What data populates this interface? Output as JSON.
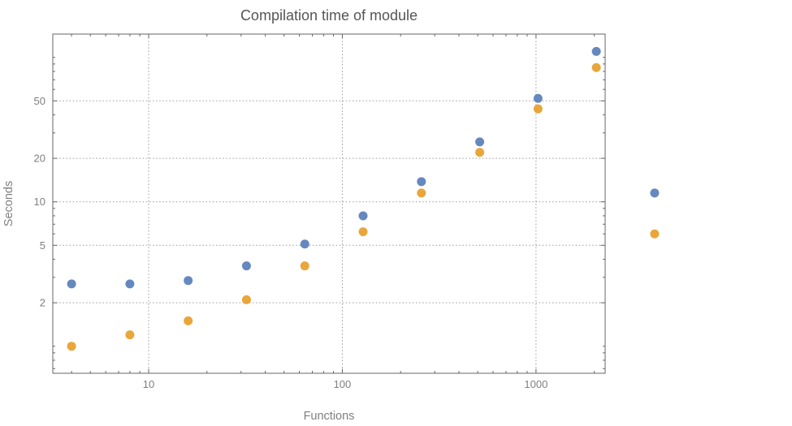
{
  "chart_data": {
    "type": "scatter",
    "title": "Compilation time of module",
    "xlabel": "Functions",
    "ylabel": "Seconds",
    "xscale": "log",
    "yscale": "log",
    "xlim": [
      3.2,
      2275
    ],
    "ylim": [
      0.65,
      145
    ],
    "xticks": [
      10,
      100,
      1000
    ],
    "yticks": [
      2,
      5,
      10,
      20,
      50
    ],
    "xminorticks": [
      4,
      5,
      6,
      7,
      8,
      9,
      20,
      30,
      40,
      50,
      60,
      70,
      80,
      90,
      200,
      300,
      400,
      500,
      600,
      700,
      800,
      900,
      2000
    ],
    "yminorticks": [
      0.7,
      0.8,
      0.9,
      1,
      3,
      4,
      6,
      7,
      8,
      9,
      30,
      40,
      60,
      70,
      80,
      90,
      100
    ],
    "grid": true,
    "legend": "none",
    "x": [
      4,
      8,
      16,
      32,
      64,
      128,
      256,
      512,
      1024,
      2048,
      4096
    ],
    "series": [
      {
        "name": "blue",
        "color": "#6588bf",
        "values": [
          2.7,
          2.7,
          2.85,
          3.6,
          5.1,
          8.0,
          13.8,
          26,
          52,
          110,
          11.5
        ]
      },
      {
        "name": "orange",
        "color": "#e9a63b",
        "values": [
          1.0,
          1.2,
          1.5,
          2.1,
          3.6,
          6.2,
          11.5,
          22,
          44,
          85,
          6.0
        ]
      }
    ],
    "point_radius": 5.5,
    "colors": {
      "background": "#ffffff",
      "grid": "#999999",
      "frame": "#666666",
      "tick": "#666666",
      "tick_label": "#7f7f7f",
      "title": "#555555",
      "axis_label": "#7f7f7f"
    }
  }
}
